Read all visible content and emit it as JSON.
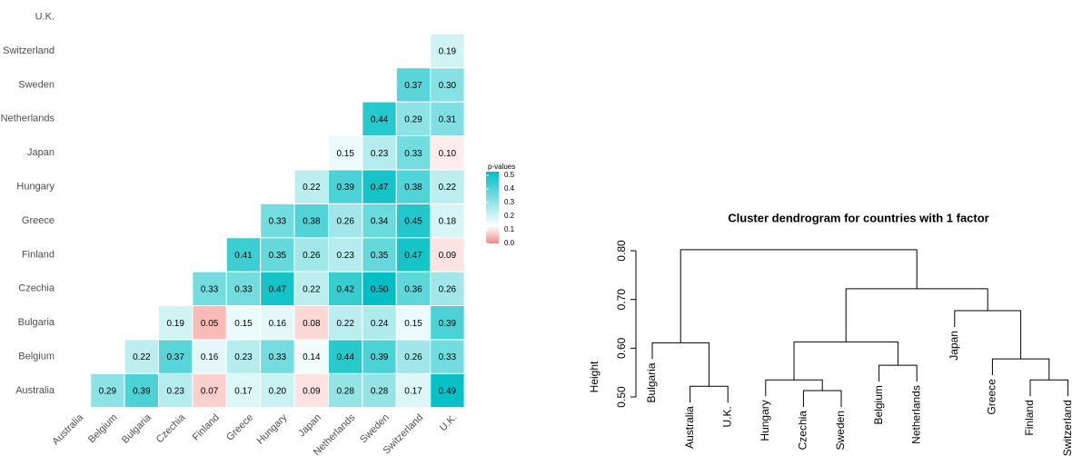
{
  "chart_data": [
    {
      "type": "heatmap",
      "categories": [
        "Australia",
        "Belgium",
        "Bulgaria",
        "Czechia",
        "Finland",
        "Greece",
        "Hungary",
        "Japan",
        "Netherlands",
        "Sweden",
        "Switzerland",
        "U.K."
      ],
      "values": [
        [
          null,
          0.29,
          0.39,
          0.23,
          0.07,
          0.17,
          0.2,
          0.09,
          0.28,
          0.28,
          0.17,
          0.49
        ],
        [
          null,
          null,
          0.22,
          0.37,
          0.16,
          0.23,
          0.33,
          0.14,
          0.44,
          0.39,
          0.26,
          0.33
        ],
        [
          null,
          null,
          null,
          0.19,
          0.05,
          0.15,
          0.16,
          0.08,
          0.22,
          0.24,
          0.15,
          0.39
        ],
        [
          null,
          null,
          null,
          null,
          0.33,
          0.33,
          0.47,
          0.22,
          0.42,
          0.5,
          0.36,
          0.26
        ],
        [
          null,
          null,
          null,
          null,
          null,
          0.41,
          0.35,
          0.26,
          0.23,
          0.35,
          0.47,
          0.09
        ],
        [
          null,
          null,
          null,
          null,
          null,
          null,
          0.33,
          0.38,
          0.26,
          0.34,
          0.45,
          0.18
        ],
        [
          null,
          null,
          null,
          null,
          null,
          null,
          null,
          0.22,
          0.39,
          0.47,
          0.38,
          0.22
        ],
        [
          null,
          null,
          null,
          null,
          null,
          null,
          null,
          null,
          0.15,
          0.23,
          0.33,
          0.1
        ],
        [
          null,
          null,
          null,
          null,
          null,
          null,
          null,
          null,
          null,
          0.44,
          0.29,
          0.31
        ],
        [
          null,
          null,
          null,
          null,
          null,
          null,
          null,
          null,
          null,
          null,
          0.37,
          0.3
        ],
        [
          null,
          null,
          null,
          null,
          null,
          null,
          null,
          null,
          null,
          null,
          null,
          0.19
        ],
        [
          null,
          null,
          null,
          null,
          null,
          null,
          null,
          null,
          null,
          null,
          null,
          null
        ]
      ],
      "value_labels": [
        [
          null,
          "0.29",
          "0.39",
          "0.23",
          "0.07",
          "0.17",
          "0.20",
          "0.09",
          "0.28",
          "0.28",
          "0.17",
          "0.49"
        ],
        [
          null,
          null,
          "0.22",
          "0.37",
          "0.16",
          "0.23",
          "0.33",
          "0.14",
          "0.44",
          "0.39",
          "0.26",
          "0.33"
        ],
        [
          null,
          null,
          null,
          "0.19",
          "0.05",
          "0.15",
          "0.16",
          "0.08",
          "0.22",
          "0.24",
          "0.15",
          "0.39"
        ],
        [
          null,
          null,
          null,
          null,
          "0.33",
          "0.33",
          "0.47",
          "0.22",
          "0.42",
          "0.50",
          "0.36",
          "0.26"
        ],
        [
          null,
          null,
          null,
          null,
          null,
          "0.41",
          "0.35",
          "0.26",
          "0.23",
          "0.35",
          "0.47",
          "0.09"
        ],
        [
          null,
          null,
          null,
          null,
          null,
          null,
          "0.33",
          "0.38",
          "0.26",
          "0.34",
          "0.45",
          "0.18"
        ],
        [
          null,
          null,
          null,
          null,
          null,
          null,
          null,
          "0.22",
          "0.39",
          "0.47",
          "0.38",
          "0.22"
        ],
        [
          null,
          null,
          null,
          null,
          null,
          null,
          null,
          null,
          "0.15",
          "0.23",
          "0.33",
          "0.10"
        ],
        [
          null,
          null,
          null,
          null,
          null,
          null,
          null,
          null,
          null,
          "0.44",
          "0.29",
          "0.31"
        ],
        [
          null,
          null,
          null,
          null,
          null,
          null,
          null,
          null,
          null,
          null,
          "0.37",
          "0.30"
        ],
        [
          null,
          null,
          null,
          null,
          null,
          null,
          null,
          null,
          null,
          null,
          null,
          "0.19"
        ],
        [
          null,
          null,
          null,
          null,
          null,
          null,
          null,
          null,
          null,
          null,
          null,
          null
        ]
      ],
      "legend_title": "p-values",
      "clim": [
        0,
        0.5
      ],
      "colorscale": [
        [
          0,
          "#f38b85"
        ],
        [
          0.12,
          "#ffffff"
        ],
        [
          0.5,
          "#00bfc4"
        ]
      ],
      "cticks": [
        {
          "value": 0,
          "label": "0.0"
        },
        0.1,
        0.2,
        0.3,
        0.4,
        0.5
      ]
    },
    {
      "type": "dendrogram",
      "title": "Cluster dendrogram for countries with 1 factor",
      "ylabel": "Height",
      "labels": [
        "Bulgaria",
        "Australia",
        "U.K.",
        "Hungary",
        "Czechia",
        "Sweden",
        "Belgium",
        "Netherlands",
        "Japan",
        "Greece",
        "Finland",
        "Switzerland"
      ],
      "merges": [
        {
          "nodes": [
            1,
            2
          ],
          "height": 0.522
        },
        {
          "nodes": [
            0,
            12
          ],
          "height": 0.611
        },
        {
          "nodes": [
            4,
            5
          ],
          "height": 0.513
        },
        {
          "nodes": [
            3,
            14
          ],
          "height": 0.535
        },
        {
          "nodes": [
            6,
            7
          ],
          "height": 0.565
        },
        {
          "nodes": [
            15,
            16
          ],
          "height": 0.613
        },
        {
          "nodes": [
            10,
            11
          ],
          "height": 0.535
        },
        {
          "nodes": [
            9,
            18
          ],
          "height": 0.578
        },
        {
          "nodes": [
            8,
            19
          ],
          "height": 0.677
        },
        {
          "nodes": [
            17,
            20
          ],
          "height": 0.722
        },
        {
          "nodes": [
            13,
            21
          ],
          "height": 0.802
        }
      ],
      "ylim": [
        0.5,
        0.8
      ],
      "yticks": [
        {
          "value": 0.5,
          "label": "0.50"
        },
        {
          "value": 0.6,
          "label": "0.60"
        },
        {
          "value": 0.7,
          "label": "0.70"
        },
        {
          "value": 0.8,
          "label": "0.80"
        }
      ],
      "color": "#000000"
    }
  ]
}
